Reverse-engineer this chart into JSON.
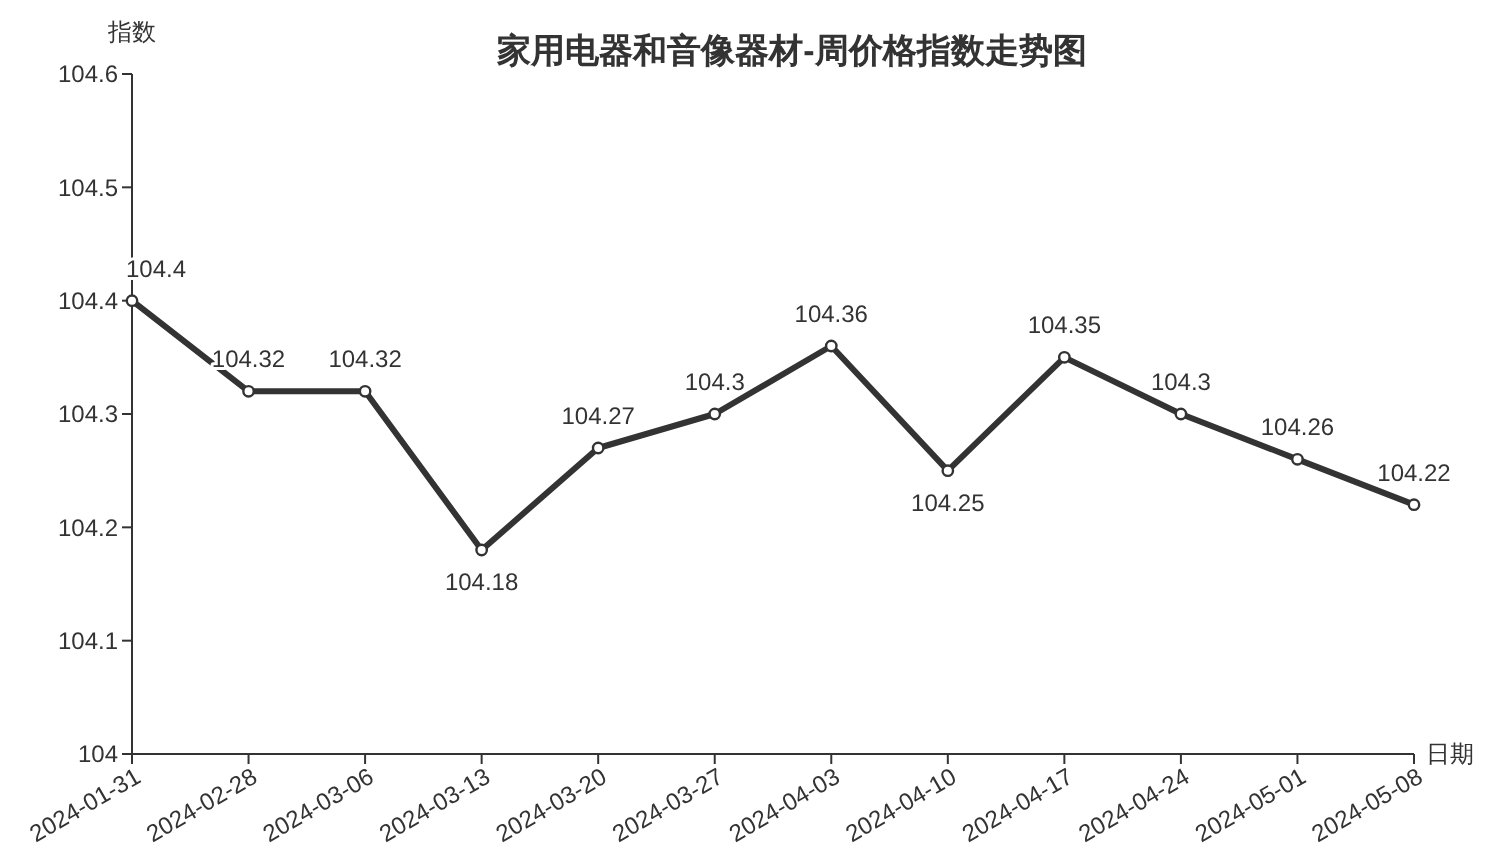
{
  "chart_data": {
    "type": "line",
    "title": "家用电器和音像器材-周价格指数走势图",
    "xlabel": "日期",
    "ylabel": "指数",
    "categories": [
      "2024-01-31",
      "2024-02-28",
      "2024-03-06",
      "2024-03-13",
      "2024-03-20",
      "2024-03-27",
      "2024-04-03",
      "2024-04-10",
      "2024-04-17",
      "2024-04-24",
      "2024-05-01",
      "2024-05-08"
    ],
    "series": [
      {
        "color": "#333333",
        "values": [
          104.4,
          104.32,
          104.32,
          104.18,
          104.27,
          104.3,
          104.36,
          104.25,
          104.35,
          104.3,
          104.26,
          104.22
        ]
      }
    ],
    "ylim": [
      104,
      104.6
    ],
    "yticks": [
      104,
      104.1,
      104.2,
      104.3,
      104.4,
      104.5,
      104.6
    ],
    "data_labels": true,
    "marker": "circle",
    "line_style": "solid"
  }
}
